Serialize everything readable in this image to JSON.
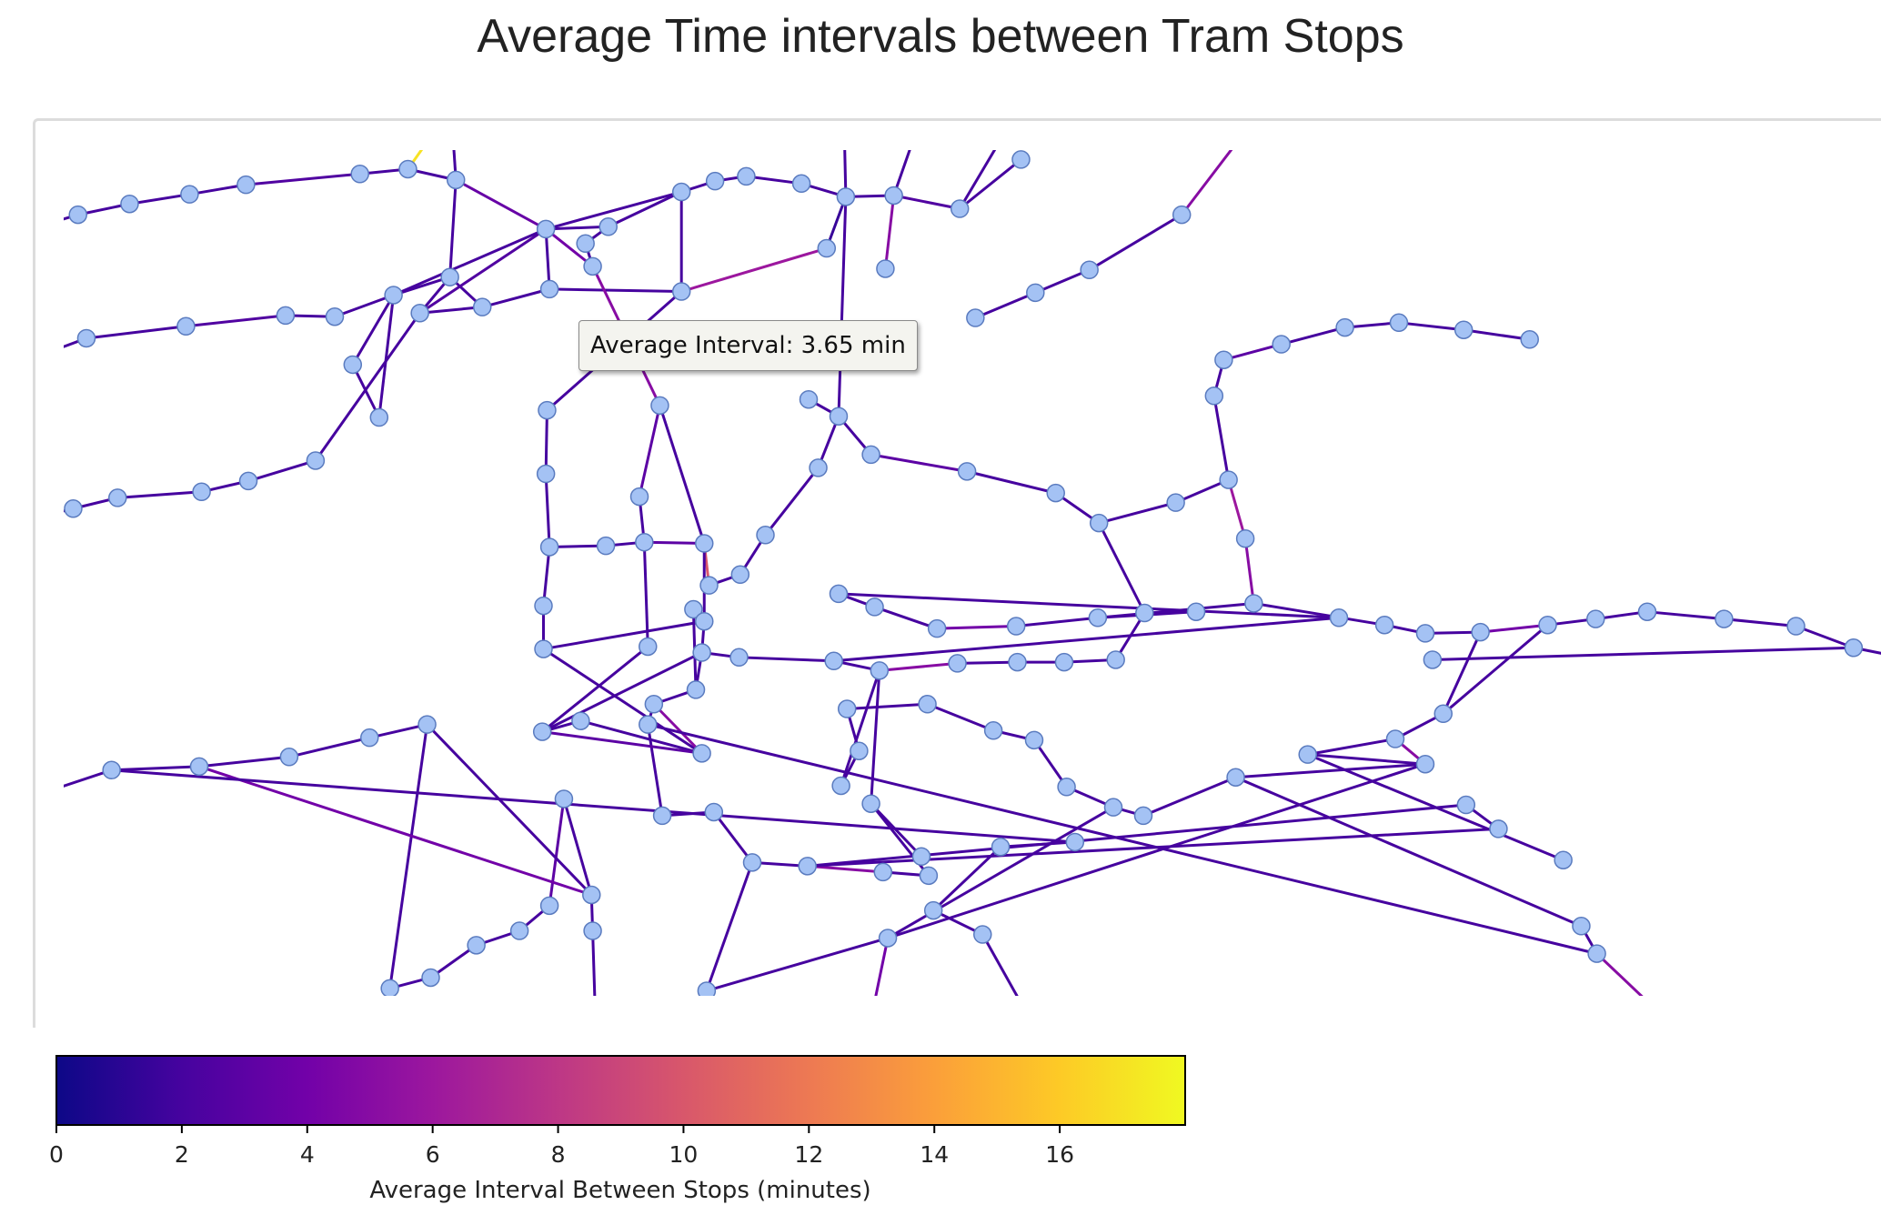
{
  "title": "Average Time intervals between Tram Stops",
  "tooltip": {
    "text": "Average Interval: 3.65 min"
  },
  "colorbar": {
    "label": "Average Interval Between Stops (minutes)",
    "min": 0,
    "max": 18,
    "ticks": [
      "0",
      "2",
      "4",
      "6",
      "8",
      "10",
      "12",
      "14",
      "16"
    ],
    "colormap": "plasma"
  },
  "colors": {
    "node_fill": "#a4c2f4",
    "node_stroke": "#5a7bbf",
    "plasma_stops": [
      "#0d0887",
      "#46039f",
      "#7201a8",
      "#9c179e",
      "#bd3786",
      "#d8576b",
      "#ed7953",
      "#fb9f3a",
      "#fdca26",
      "#f0f921"
    ]
  }
}
